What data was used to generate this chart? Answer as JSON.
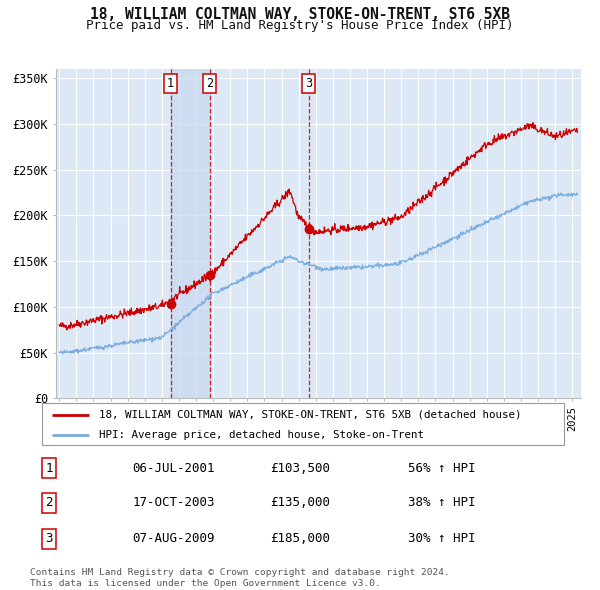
{
  "title": "18, WILLIAM COLTMAN WAY, STOKE-ON-TRENT, ST6 5XB",
  "subtitle": "Price paid vs. HM Land Registry's House Price Index (HPI)",
  "red_line_color": "#cc0000",
  "blue_line_color": "#7aade0",
  "background_color": "#ffffff",
  "plot_bg_color": "#dce8f5",
  "grid_color": "#ffffff",
  "sale1_date": 2001.51,
  "sale1_price": 103500,
  "sale1_label": "1",
  "sale1_display": "06-JUL-2001",
  "sale1_hpi": "56% ↑ HPI",
  "sale2_date": 2003.79,
  "sale2_price": 135000,
  "sale2_label": "2",
  "sale2_display": "17-OCT-2003",
  "sale2_hpi": "38% ↑ HPI",
  "sale3_date": 2009.6,
  "sale3_price": 185000,
  "sale3_label": "3",
  "sale3_display": "07-AUG-2009",
  "sale3_hpi": "30% ↑ HPI",
  "ylim": [
    0,
    360000
  ],
  "xlim_start": 1994.8,
  "xlim_end": 2025.5,
  "yticks": [
    0,
    50000,
    100000,
    150000,
    200000,
    250000,
    300000,
    350000
  ],
  "ytick_labels": [
    "£0",
    "£50K",
    "£100K",
    "£150K",
    "£200K",
    "£250K",
    "£300K",
    "£350K"
  ],
  "legend1_label": "18, WILLIAM COLTMAN WAY, STOKE-ON-TRENT, ST6 5XB (detached house)",
  "legend2_label": "HPI: Average price, detached house, Stoke-on-Trent",
  "footer": "Contains HM Land Registry data © Crown copyright and database right 2024.\nThis data is licensed under the Open Government Licence v3.0."
}
